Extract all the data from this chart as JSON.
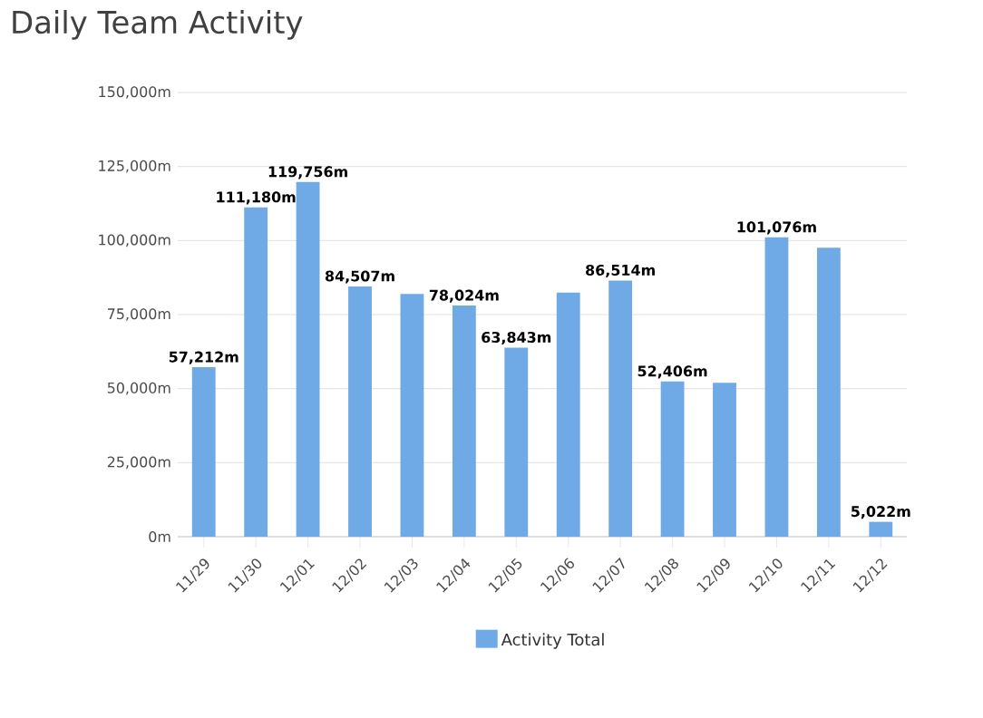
{
  "chart_data": {
    "type": "bar",
    "title": "Daily Team Activity",
    "categories": [
      "11/29",
      "11/30",
      "12/01",
      "12/02",
      "12/03",
      "12/04",
      "12/05",
      "12/06",
      "12/07",
      "12/08",
      "12/09",
      "12/10",
      "12/11",
      "12/12"
    ],
    "series": [
      {
        "name": "Activity Total",
        "color": "#6faae7",
        "values": [
          57212,
          111180,
          119756,
          84507,
          82000,
          78024,
          63843,
          82400,
          86514,
          52406,
          52000,
          101076,
          97600,
          5022
        ],
        "value_labels": [
          "57,212m",
          "111,180m",
          "119,756m",
          "84,507m",
          null,
          "78,024m",
          "63,843m",
          null,
          "86,514m",
          "52,406m",
          null,
          "101,076m",
          null,
          "5,022m"
        ]
      }
    ],
    "ylim": [
      0,
      150000
    ],
    "yticks": [
      {
        "value": 0,
        "label": "0m"
      },
      {
        "value": 25000,
        "label": "25,000m"
      },
      {
        "value": 50000,
        "label": "50,000m"
      },
      {
        "value": 75000,
        "label": "75,000m"
      },
      {
        "value": 100000,
        "label": "100,000m"
      },
      {
        "value": 125000,
        "label": "125,000m"
      },
      {
        "value": 150000,
        "label": "150,000m"
      }
    ],
    "grid": "y",
    "legend": "bottom"
  }
}
